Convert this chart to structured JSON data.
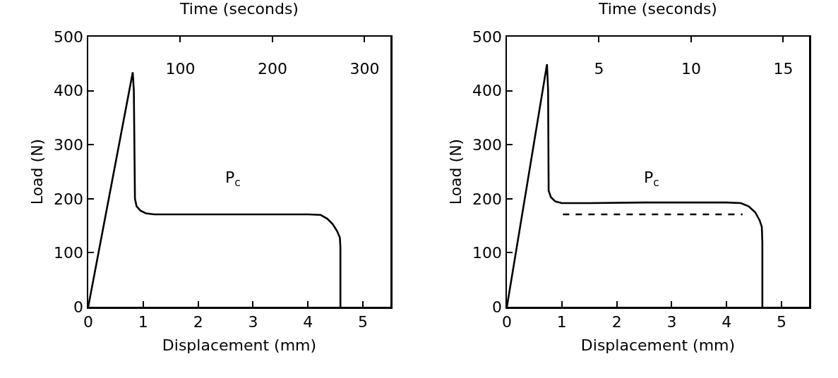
{
  "chart_data": [
    {
      "type": "line",
      "xlabel": "Displacement (mm)",
      "ylabel": "Load (N)",
      "x2label": "Time (seconds)",
      "marker": "none",
      "xlim": [
        0,
        5.5
      ],
      "xticks": [
        0,
        1,
        2,
        3,
        4,
        5
      ],
      "ylim": [
        0,
        500
      ],
      "yticks": [
        0,
        100,
        200,
        300,
        400,
        500
      ],
      "x2lim": [
        0,
        328
      ],
      "x2ticks": [
        100,
        200,
        300
      ],
      "series": [
        {
          "color": "#000000",
          "x": [
            0,
            0.81,
            0.83,
            0.85,
            0.88,
            0.95,
            1.05,
            1.2,
            2.5,
            4.0,
            4.23,
            4.35,
            4.45,
            4.53,
            4.58,
            4.59,
            4.59
          ],
          "values": [
            0,
            434,
            400,
            200,
            186,
            178,
            173,
            171,
            171,
            171,
            170,
            163,
            153,
            140,
            128,
            110,
            0
          ]
        }
      ],
      "annotations": [
        "P$_{c}$"
      ]
    },
    {
      "type": "line",
      "xlabel": "Displacement (mm)",
      "ylabel": "Load (N)",
      "x2label": "Time (seconds)",
      "marker": "none",
      "xlim": [
        0,
        5.5
      ],
      "xticks": [
        0,
        1,
        2,
        3,
        4,
        5
      ],
      "ylim": [
        0,
        500
      ],
      "yticks": [
        0,
        100,
        200,
        300,
        400,
        500
      ],
      "x2lim": [
        0,
        16.4
      ],
      "x2ticks": [
        5,
        10,
        15
      ],
      "series": [
        {
          "color": "#000000",
          "x": [
            0,
            0.73,
            0.75,
            0.76,
            0.8,
            0.88,
            1.0,
            1.5,
            2.5,
            4.0,
            4.26,
            4.4,
            4.52,
            4.6,
            4.64,
            4.65,
            4.65
          ],
          "values": [
            0,
            449,
            400,
            215,
            203,
            195,
            192,
            192,
            193,
            193,
            192,
            186,
            175,
            160,
            148,
            120,
            0
          ]
        },
        {
          "color": "#000000",
          "line_style": "dashed",
          "x": [
            1.02,
            4.29
          ],
          "values": [
            171,
            171
          ]
        }
      ],
      "annotations": [
        "P$_{c}$"
      ]
    }
  ]
}
